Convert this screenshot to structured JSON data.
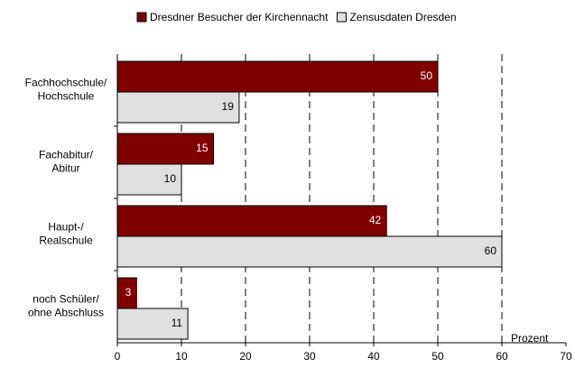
{
  "chart_data": {
    "type": "bar",
    "orientation": "horizontal",
    "categories": [
      [
        "Fachhochschule/",
        "Hochschule"
      ],
      [
        "Fachabitur/",
        "Abitur"
      ],
      [
        "Haupt-/",
        "Realschule"
      ],
      [
        "noch Schüler/",
        "ohne Abschluss"
      ]
    ],
    "series": [
      {
        "name": "Dresdner Besucher der Kirchennacht",
        "color": "#800000",
        "values": [
          50,
          15,
          42,
          3
        ]
      },
      {
        "name": "Zensusdaten Dresden",
        "color": "#e0e0e0",
        "values": [
          19,
          10,
          60,
          11
        ]
      }
    ],
    "xlabel": "Prozent",
    "xlim": [
      0,
      70
    ],
    "xticks": [
      0,
      10,
      20,
      30,
      40,
      50,
      60,
      70
    ],
    "grid": true,
    "legend": "top"
  }
}
